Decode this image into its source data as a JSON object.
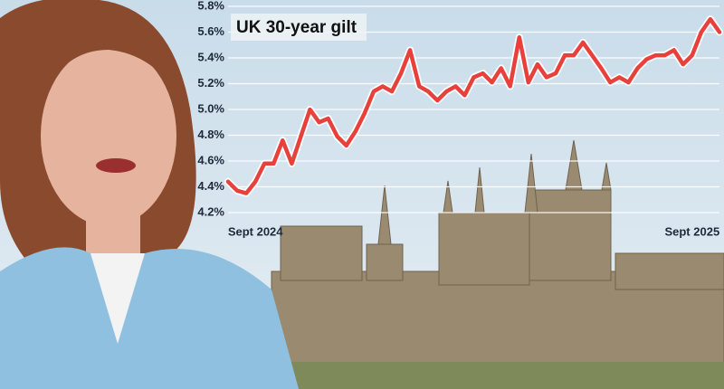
{
  "chart_data": {
    "type": "line",
    "title": "UK 30-year gilt",
    "categories": [
      null,
      null,
      null,
      "Sept 2024",
      null,
      null,
      null,
      null,
      null,
      null,
      null,
      null,
      null,
      null,
      null,
      null,
      null,
      null,
      null,
      null,
      null,
      null,
      null,
      null,
      null,
      null,
      null,
      null,
      null,
      null,
      null,
      null,
      null,
      null,
      null,
      null,
      null,
      null,
      null,
      null,
      null,
      null,
      null,
      null,
      null,
      null,
      null,
      null,
      null,
      null,
      null,
      "Sept 2025",
      null,
      null,
      null
    ],
    "series": [
      {
        "name": "UK 30-year gilt",
        "color": "#e8413c",
        "values": [
          4.44,
          4.37,
          4.35,
          4.44,
          4.58,
          4.58,
          4.76,
          4.58,
          4.79,
          5.0,
          4.9,
          4.93,
          4.79,
          4.72,
          4.83,
          4.97,
          5.14,
          5.18,
          5.14,
          5.28,
          5.46,
          5.18,
          5.14,
          5.07,
          5.14,
          5.18,
          5.11,
          5.25,
          5.28,
          5.21,
          5.32,
          5.18,
          5.56,
          5.21,
          5.35,
          5.25,
          5.28,
          5.42,
          5.42,
          5.52,
          5.42,
          5.32,
          5.21,
          5.25,
          5.21,
          5.32,
          5.39,
          5.42,
          5.42,
          5.46,
          5.35,
          5.42,
          5.6,
          5.7,
          5.6
        ]
      }
    ],
    "ylim": [
      4.2,
      5.8
    ],
    "yticks": [
      {
        "value": 4.2,
        "label": "4.2%"
      },
      {
        "value": 4.4,
        "label": "4.4%"
      },
      {
        "value": 4.6,
        "label": "4.6%"
      },
      {
        "value": 4.8,
        "label": "4.8%"
      },
      {
        "value": 5.0,
        "label": "5.0%"
      },
      {
        "value": 5.2,
        "label": "5.2%"
      },
      {
        "value": 5.4,
        "label": "5.4%"
      },
      {
        "value": 5.6,
        "label": "5.6%"
      },
      {
        "value": 5.8,
        "label": "5.8%"
      }
    ],
    "grid": true
  }
}
